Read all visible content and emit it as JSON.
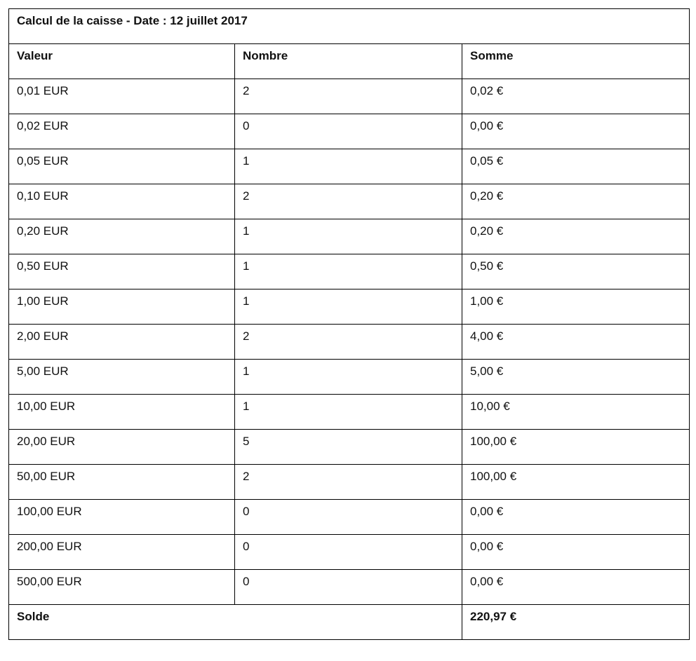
{
  "title": "Calcul de la caisse - Date : 12 juillet 2017",
  "headers": [
    "Valeur",
    "Nombre",
    "Somme"
  ],
  "rows": [
    {
      "valeur": "0,01 EUR",
      "nombre": "2",
      "somme": "0,02 €"
    },
    {
      "valeur": "0,02 EUR",
      "nombre": "0",
      "somme": "0,00 €"
    },
    {
      "valeur": "0,05 EUR",
      "nombre": "1",
      "somme": "0,05 €"
    },
    {
      "valeur": "0,10 EUR",
      "nombre": "2",
      "somme": "0,20 €"
    },
    {
      "valeur": "0,20 EUR",
      "nombre": "1",
      "somme": "0,20 €"
    },
    {
      "valeur": "0,50 EUR",
      "nombre": "1",
      "somme": "0,50 €"
    },
    {
      "valeur": "1,00 EUR",
      "nombre": "1",
      "somme": "1,00 €"
    },
    {
      "valeur": "2,00 EUR",
      "nombre": "2",
      "somme": "4,00 €"
    },
    {
      "valeur": "5,00 EUR",
      "nombre": "1",
      "somme": "5,00 €"
    },
    {
      "valeur": "10,00 EUR",
      "nombre": "1",
      "somme": "10,00 €"
    },
    {
      "valeur": "20,00 EUR",
      "nombre": "5",
      "somme": "100,00 €"
    },
    {
      "valeur": "50,00 EUR",
      "nombre": "2",
      "somme": "100,00 €"
    },
    {
      "valeur": "100,00 EUR",
      "nombre": "0",
      "somme": "0,00 €"
    },
    {
      "valeur": "200,00 EUR",
      "nombre": "0",
      "somme": "0,00 €"
    },
    {
      "valeur": "500,00 EUR",
      "nombre": "0",
      "somme": "0,00 €"
    }
  ],
  "footer": {
    "label": "Solde",
    "total": "220,97 €"
  }
}
